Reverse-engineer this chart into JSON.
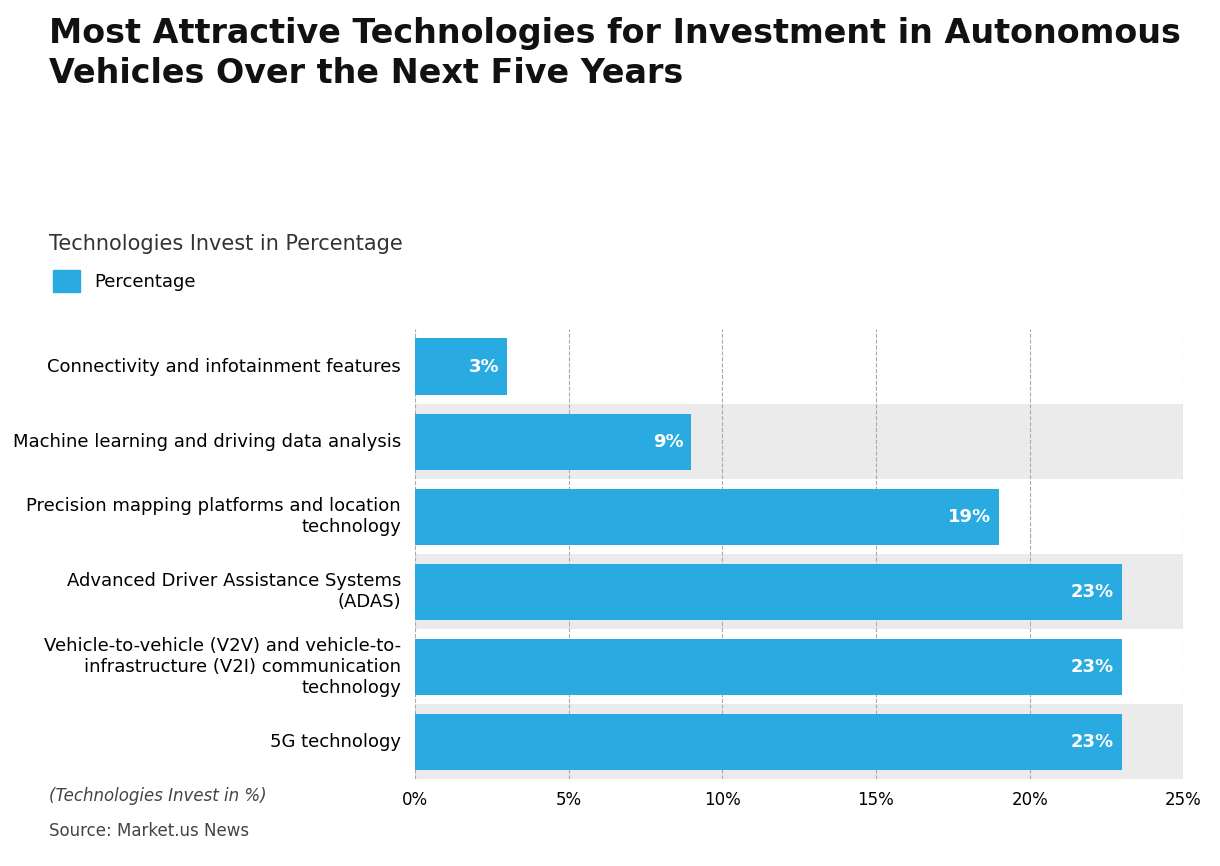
{
  "title": "Most Attractive Technologies for Investment in Autonomous\nVehicles Over the Next Five Years",
  "subtitle": "Technologies Invest in Percentage",
  "legend_label": "Percentage",
  "categories": [
    "Connectivity and infotainment features",
    "Machine learning and driving data analysis",
    "Precision mapping platforms and location\ntechnology",
    "Advanced Driver Assistance Systems\n(ADAS)",
    "Vehicle-to-vehicle (V2V) and vehicle-to-\ninfrastructure (V2I) communication\ntechnology",
    "5G technology"
  ],
  "values": [
    3,
    9,
    19,
    23,
    23,
    23
  ],
  "bar_color": "#29ABE2",
  "bar_labels": [
    "3%",
    "9%",
    "19%",
    "23%",
    "23%",
    "23%"
  ],
  "xlim": [
    0,
    25
  ],
  "xticks": [
    0,
    5,
    10,
    15,
    20,
    25
  ],
  "xtick_labels": [
    "0%",
    "5%",
    "10%",
    "15%",
    "20%",
    "25%"
  ],
  "background_color": "#ffffff",
  "row_colors": [
    "#ffffff",
    "#ebebeb"
  ],
  "title_fontsize": 24,
  "subtitle_fontsize": 15,
  "label_fontsize": 13,
  "bar_label_fontsize": 13,
  "tick_fontsize": 12,
  "footer_italic": "(Technologies Invest in %)",
  "footer_normal": "Source: Market.us News",
  "footer_fontsize": 12
}
